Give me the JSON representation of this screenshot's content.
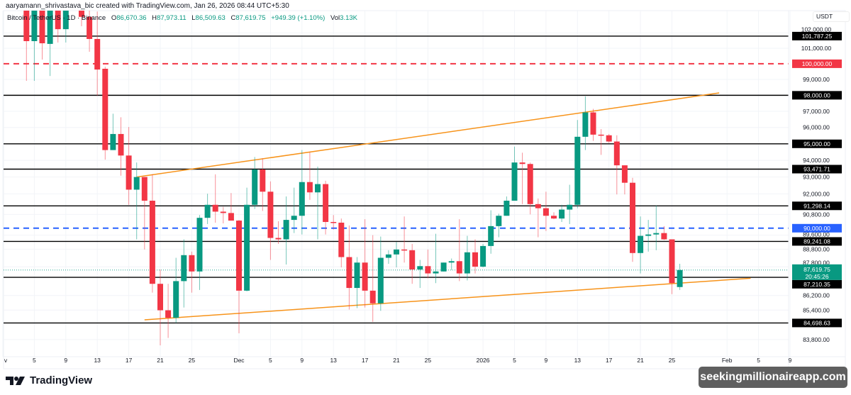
{
  "attribution": "aaryamann_shrivastava_bic created with TradingView.com, Jan 26, 2026 08:44 UTC+5:30",
  "legend": {
    "symbol": "Bitcoin / TetherUS · 1D · Binance",
    "open_label": "O",
    "open": "86,670.36",
    "high_label": "H",
    "high": "87,973.11",
    "low_label": "L",
    "low": "86,509.63",
    "close_label": "C",
    "close": "87,619.75",
    "change": "+949.39 (+1.10%)",
    "vol_label": "Vol",
    "vol": "3.13K"
  },
  "currency": "USDT",
  "footer": {
    "brand": "TradingView",
    "watermark": "seekingmillionaireapp.com"
  },
  "colors": {
    "up": "#089981",
    "down": "#f23645",
    "trendline": "#f7931a",
    "level": "#000000",
    "red_level": "#f23645",
    "blue_level": "#2962ff"
  },
  "chart_data": {
    "type": "candlestick",
    "scale": "log",
    "grid": true,
    "x_ticks": [
      {
        "date": "2025-11-01",
        "label": "v"
      },
      {
        "date": "2025-11-05",
        "label": "5"
      },
      {
        "date": "2025-11-09",
        "label": "9"
      },
      {
        "date": "2025-11-13",
        "label": "13"
      },
      {
        "date": "2025-11-17",
        "label": "17"
      },
      {
        "date": "2025-11-21",
        "label": "21"
      },
      {
        "date": "2025-11-25",
        "label": "25"
      },
      {
        "date": "2025-12-01",
        "label": "Dec"
      },
      {
        "date": "2025-12-05",
        "label": "5"
      },
      {
        "date": "2025-12-09",
        "label": "9"
      },
      {
        "date": "2025-12-13",
        "label": "13"
      },
      {
        "date": "2025-12-17",
        "label": "17"
      },
      {
        "date": "2025-12-21",
        "label": "21"
      },
      {
        "date": "2025-12-25",
        "label": "25"
      },
      {
        "date": "2026-01-01",
        "label": "2026"
      },
      {
        "date": "2026-01-05",
        "label": "5"
      },
      {
        "date": "2026-01-09",
        "label": "9"
      },
      {
        "date": "2026-01-13",
        "label": "13"
      },
      {
        "date": "2026-01-17",
        "label": "17"
      },
      {
        "date": "2026-01-21",
        "label": "21"
      },
      {
        "date": "2026-01-25",
        "label": "25"
      },
      {
        "date": "2026-02-01",
        "label": "Feb"
      },
      {
        "date": "2026-02-05",
        "label": "5"
      },
      {
        "date": "2026-02-09",
        "label": "9"
      }
    ],
    "y_ticks": [
      {
        "value": 102000,
        "label": "102,000.00"
      },
      {
        "value": 101000,
        "label": "101,000.00"
      },
      {
        "value": 99000,
        "label": "99,000.00"
      },
      {
        "value": 97000,
        "label": "97,000.00"
      },
      {
        "value": 96000,
        "label": "96,000.00"
      },
      {
        "value": 94000,
        "label": "94,000.00"
      },
      {
        "value": 93000,
        "label": "93,000.00"
      },
      {
        "value": 92000,
        "label": "92,000.00"
      },
      {
        "value": 90800,
        "label": "90,800.00"
      },
      {
        "value": 89600,
        "label": "89,600.00"
      },
      {
        "value": 88800,
        "label": "88,800.00"
      },
      {
        "value": 87800,
        "label": "87,800.00"
      },
      {
        "value": 86200,
        "label": "86,200.00"
      },
      {
        "value": 85400,
        "label": "85,400.00"
      },
      {
        "value": 83800,
        "label": "83,800.00"
      }
    ],
    "levels": [
      {
        "value": 101787.25,
        "label": "101,787.25",
        "style": "solid",
        "color": "#000000"
      },
      {
        "value": 100000,
        "label": "100,000.00",
        "style": "dashed",
        "color": "#f23645"
      },
      {
        "value": 98000,
        "label": "98,000.00",
        "style": "solid",
        "color": "#000000"
      },
      {
        "value": 95000,
        "label": "95,000.00",
        "style": "solid",
        "color": "#000000"
      },
      {
        "value": 93471.71,
        "label": "93,471.71",
        "style": "solid",
        "color": "#000000"
      },
      {
        "value": 91298.14,
        "label": "91,298.14",
        "style": "solid",
        "color": "#000000"
      },
      {
        "value": 90000,
        "label": "90,000.00",
        "style": "dashed",
        "color": "#2962ff"
      },
      {
        "value": 89241.08,
        "label": "89,241.08",
        "style": "solid",
        "color": "#000000"
      },
      {
        "value": 87210.35,
        "label": "87,210.35",
        "style": "solid",
        "color": "#000000"
      },
      {
        "value": 84698.63,
        "label": "84,698.63",
        "style": "solid",
        "color": "#000000"
      }
    ],
    "current_price": {
      "value": 87619.75,
      "label": "87,619.75",
      "countdown": "20:45:26"
    },
    "trendlines": [
      {
        "from": {
          "date": "2025-11-18",
          "price": 93000
        },
        "to": {
          "date": "2026-01-31",
          "price": 98150
        }
      },
      {
        "from": {
          "date": "2025-11-19",
          "price": 84870
        },
        "to": {
          "date": "2026-02-04",
          "price": 87160
        }
      }
    ],
    "candles_columns": [
      "date",
      "open",
      "high",
      "low",
      "close"
    ],
    "candles": [
      [
        "2025-11-04",
        104500,
        106500,
        98910,
        101460
      ],
      [
        "2025-11-05",
        101460,
        104800,
        98910,
        104000
      ],
      [
        "2025-11-06",
        104000,
        104500,
        100270,
        101320
      ],
      [
        "2025-11-07",
        101280,
        104500,
        99220,
        104200
      ],
      [
        "2025-11-08",
        103500,
        104000,
        101370,
        102240
      ],
      [
        "2025-11-09",
        102240,
        104800,
        101370,
        104200
      ],
      [
        "2025-11-10",
        104200,
        106000,
        104000,
        105800
      ],
      [
        "2025-11-11",
        105500,
        106000,
        102430,
        103050
      ],
      [
        "2025-11-12",
        103050,
        105000,
        100770,
        101600
      ],
      [
        "2025-11-13",
        101600,
        103400,
        97980,
        99630
      ],
      [
        "2025-11-14",
        99680,
        99810,
        94040,
        94620
      ],
      [
        "2025-11-15",
        94620,
        96850,
        94620,
        95600
      ],
      [
        "2025-11-16",
        95600,
        96630,
        93080,
        94290
      ],
      [
        "2025-11-17",
        94290,
        96030,
        91360,
        92250
      ],
      [
        "2025-11-18",
        92250,
        93870,
        89360,
        93000
      ],
      [
        "2025-11-19",
        93000,
        93000,
        88780,
        91600
      ],
      [
        "2025-11-20",
        91600,
        93160,
        86360,
        86850
      ],
      [
        "2025-11-21",
        86850,
        87650,
        83490,
        85390
      ],
      [
        "2025-11-22",
        85390,
        86850,
        83890,
        84980
      ],
      [
        "2025-11-23",
        84980,
        88310,
        84700,
        87000
      ],
      [
        "2025-11-24",
        87000,
        89360,
        85540,
        88460
      ],
      [
        "2025-11-25",
        88460,
        88660,
        86360,
        87540
      ],
      [
        "2025-11-26",
        87540,
        90760,
        86510,
        90600
      ],
      [
        "2025-11-27",
        90600,
        92010,
        90240,
        91360
      ],
      [
        "2025-11-28",
        91360,
        93160,
        90320,
        90960
      ],
      [
        "2025-11-29",
        90960,
        91240,
        90280,
        90880
      ],
      [
        "2025-11-30",
        90880,
        92050,
        90440,
        90440
      ],
      [
        "2025-12-01",
        90440,
        90480,
        84140,
        86470
      ],
      [
        "2025-12-02",
        86470,
        92370,
        86430,
        91360
      ],
      [
        "2025-12-03",
        91360,
        94200,
        91120,
        93450
      ],
      [
        "2025-12-04",
        93450,
        94120,
        91000,
        92130
      ],
      [
        "2025-12-05",
        92130,
        92740,
        88190,
        89440
      ],
      [
        "2025-12-06",
        89440,
        90400,
        89100,
        89360
      ],
      [
        "2025-12-07",
        89360,
        91850,
        87930,
        90480
      ],
      [
        "2025-12-08",
        90480,
        92370,
        89720,
        90720
      ],
      [
        "2025-12-09",
        90720,
        94620,
        89640,
        92700
      ],
      [
        "2025-12-10",
        92700,
        94500,
        91650,
        92090
      ],
      [
        "2025-12-11",
        92090,
        93620,
        89360,
        92580
      ],
      [
        "2025-12-12",
        92580,
        92780,
        89640,
        90360
      ],
      [
        "2025-12-13",
        90360,
        90760,
        89920,
        90320
      ],
      [
        "2025-12-14",
        90320,
        90560,
        87770,
        88350
      ],
      [
        "2025-12-15",
        88350,
        90160,
        85430,
        86620
      ],
      [
        "2025-12-16",
        86620,
        88350,
        85510,
        88040
      ],
      [
        "2025-12-17",
        88040,
        90520,
        85540,
        86470
      ],
      [
        "2025-12-18",
        86470,
        89600,
        84760,
        85770
      ],
      [
        "2025-12-19",
        85770,
        89520,
        85360,
        88310
      ],
      [
        "2025-12-20",
        88310,
        88740,
        87970,
        88500
      ],
      [
        "2025-12-21",
        88500,
        89210,
        87770,
        88780
      ],
      [
        "2025-12-22",
        88780,
        90680,
        88040,
        88740
      ],
      [
        "2025-12-23",
        88740,
        89100,
        86850,
        87650
      ],
      [
        "2025-12-24",
        87650,
        88190,
        86620,
        87840
      ],
      [
        "2025-12-25",
        87840,
        88780,
        87160,
        87430
      ],
      [
        "2025-12-26",
        87430,
        89680,
        86890,
        87540
      ],
      [
        "2025-12-27",
        87540,
        88040,
        87540,
        88040
      ],
      [
        "2025-12-28",
        88040,
        88270,
        87620,
        88120
      ],
      [
        "2025-12-29",
        88120,
        90520,
        87000,
        87430
      ],
      [
        "2025-12-30",
        87430,
        89560,
        87040,
        88620
      ],
      [
        "2025-12-31",
        88620,
        89360,
        87430,
        87810
      ],
      [
        "2026-01-01",
        87810,
        89100,
        87770,
        88980
      ],
      [
        "2026-01-02",
        88980,
        91040,
        88540,
        90120
      ],
      [
        "2026-01-03",
        90120,
        90840,
        89480,
        90720
      ],
      [
        "2026-01-04",
        90720,
        91850,
        90720,
        91600
      ],
      [
        "2026-01-05",
        91600,
        94830,
        91600,
        93870
      ],
      [
        "2026-01-06",
        93870,
        94460,
        91400,
        93780
      ],
      [
        "2026-01-07",
        93780,
        93870,
        90800,
        91400
      ],
      [
        "2026-01-08",
        91400,
        91730,
        89480,
        91160
      ],
      [
        "2026-01-09",
        91160,
        92130,
        89840,
        90720
      ],
      [
        "2026-01-10",
        90720,
        90920,
        90520,
        90560
      ],
      [
        "2026-01-11",
        90560,
        91360,
        90360,
        91080
      ],
      [
        "2026-01-12",
        91080,
        92540,
        90240,
        91360
      ],
      [
        "2026-01-13",
        91360,
        96460,
        91160,
        95430
      ],
      [
        "2026-01-14",
        95430,
        97930,
        94620,
        96930
      ],
      [
        "2026-01-15",
        96930,
        97150,
        95180,
        95560
      ],
      [
        "2026-01-16",
        95560,
        95900,
        94330,
        95520
      ],
      [
        "2026-01-17",
        95520,
        95600,
        95050,
        95140
      ],
      [
        "2026-01-18",
        95140,
        95520,
        91970,
        93700
      ],
      [
        "2026-01-19",
        93700,
        93700,
        91970,
        92660
      ],
      [
        "2026-01-20",
        92660,
        92950,
        88080,
        88580
      ],
      [
        "2026-01-21",
        88580,
        90680,
        87430,
        89560
      ],
      [
        "2026-01-22",
        89560,
        90480,
        88660,
        89640
      ],
      [
        "2026-01-23",
        89640,
        91320,
        88740,
        89720
      ],
      [
        "2026-01-24",
        89720,
        90120,
        89320,
        89360
      ],
      [
        "2026-01-25",
        89360,
        89360,
        86280,
        86890
      ],
      [
        "2026-01-26",
        86670.36,
        87973.11,
        86509.63,
        87619.75
      ]
    ]
  }
}
